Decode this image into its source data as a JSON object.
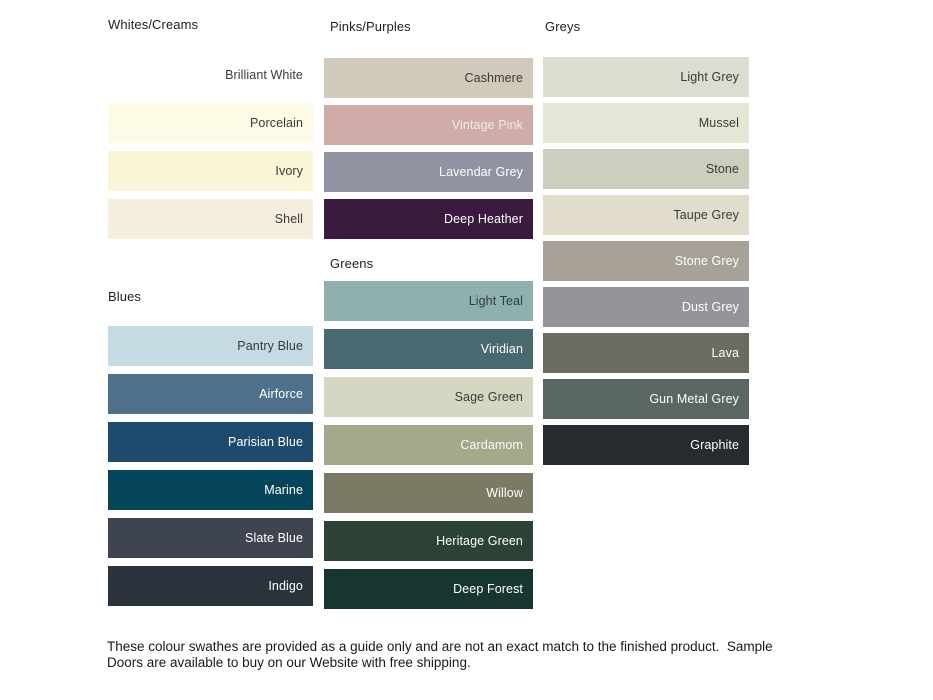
{
  "page": {
    "background": "#FFFFFF",
    "footer": {
      "line1": "These colour swathes are provided as a guide only and are not an exact match to the finished product.  Sample",
      "line2": "Doors are available to buy on our Website with free shipping."
    }
  },
  "groups": [
    {
      "id": "whites-creams",
      "label": "Whites/Creams",
      "swatches": [
        {
          "name": "Brilliant White",
          "color": "#FFFFFF",
          "text_color": "#3A3A3A"
        },
        {
          "name": "Porcelain",
          "color": "#FDFBE6",
          "text_color": "#3A3A3A"
        },
        {
          "name": "Ivory",
          "color": "#FBF5D8",
          "text_color": "#3A3A3A"
        },
        {
          "name": "Shell",
          "color": "#F5EDDE",
          "text_color": "#3A3A3A"
        }
      ]
    },
    {
      "id": "blues",
      "label": "Blues",
      "swatches": [
        {
          "name": "Pantry Blue",
          "color": "#C5DAE2",
          "text_color": "#333B40"
        },
        {
          "name": "Airforce",
          "color": "#4D718D",
          "text_color": "#FFFFFF"
        },
        {
          "name": "Parisian Blue",
          "color": "#1E4A6D",
          "text_color": "#FFFFFF"
        },
        {
          "name": "Marine",
          "color": "#05455A",
          "text_color": "#FFFFFF"
        },
        {
          "name": "Slate Blue",
          "color": "#3F4550",
          "text_color": "#FFFFFF"
        },
        {
          "name": "Indigo",
          "color": "#2A323C",
          "text_color": "#FFFFFF"
        }
      ]
    },
    {
      "id": "pinks-purples",
      "label": "Pinks/Purples",
      "swatches": [
        {
          "name": "Cashmere",
          "color": "#D0CABA",
          "text_color": "#3A3A3A"
        },
        {
          "name": "Vintage Pink",
          "color": "#CFACA7",
          "text_color": "#F4EAE9"
        },
        {
          "name": "Lavendar Grey",
          "color": "#9193A3",
          "text_color": "#FFFFFF"
        },
        {
          "name": "Deep Heather",
          "color": "#3B1A3F",
          "text_color": "#FFFFFF"
        }
      ]
    },
    {
      "id": "greens",
      "label": "Greens",
      "swatches": [
        {
          "name": "Light Teal",
          "color": "#8FB1AE",
          "text_color": "#313D3B"
        },
        {
          "name": "Viridian",
          "color": "#496970",
          "text_color": "#FFFFFF"
        },
        {
          "name": "Sage Green",
          "color": "#D4D8C3",
          "text_color": "#3A3A3A"
        },
        {
          "name": "Cardamom",
          "color": "#A3A98B",
          "text_color": "#FAFAF4"
        },
        {
          "name": "Willow",
          "color": "#7C7A65",
          "text_color": "#FFFFFF"
        },
        {
          "name": "Heritage Green",
          "color": "#2C4237",
          "text_color": "#FFFFFF"
        },
        {
          "name": "Deep Forest",
          "color": "#16362F",
          "text_color": "#FFFFFF"
        }
      ]
    },
    {
      "id": "greys",
      "label": "Greys",
      "swatches": [
        {
          "name": "Light Grey",
          "color": "#DBDDD0",
          "text_color": "#3A3A3A"
        },
        {
          "name": "Mussel",
          "color": "#E4E7D6",
          "text_color": "#3A3A3A"
        },
        {
          "name": "Stone",
          "color": "#CBCFBE",
          "text_color": "#3A3A3A"
        },
        {
          "name": "Taupe Grey",
          "color": "#E2DCCC",
          "text_color": "#3A3A3A"
        },
        {
          "name": "Stone Grey",
          "color": "#A7A197",
          "text_color": "#FFFFFF"
        },
        {
          "name": "Dust Grey",
          "color": "#94959B",
          "text_color": "#FFFFFF"
        },
        {
          "name": "Lava",
          "color": "#6B6B61",
          "text_color": "#FFFFFF"
        },
        {
          "name": "Gun Metal Grey",
          "color": "#596661",
          "text_color": "#FFFFFF"
        },
        {
          "name": "Graphite",
          "color": "#272B30",
          "text_color": "#FFFFFF"
        }
      ]
    }
  ]
}
